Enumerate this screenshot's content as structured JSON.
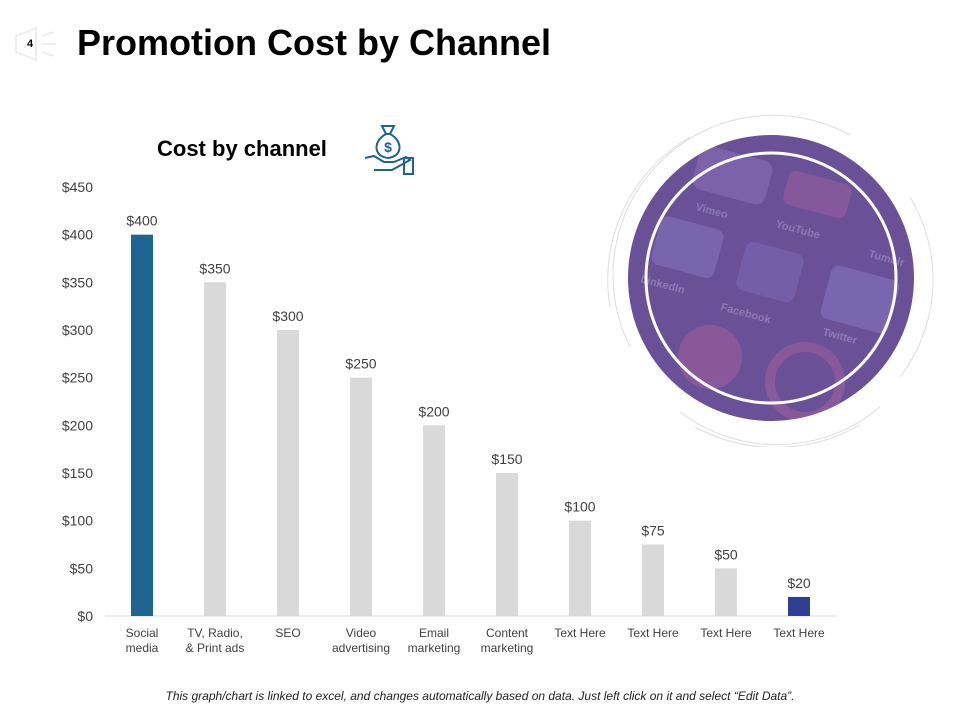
{
  "page_number": "4",
  "title": "Promotion Cost by Channel",
  "footer": "This graph/chart is linked to excel, and changes automatically based on data. Just left click on it and select “Edit Data”.",
  "colors": {
    "highlight_first": "#1f6391",
    "highlight_last": "#2e3f94",
    "bar": "#d9d9d9",
    "circle": "#6a5197"
  },
  "photo_labels": [
    "Vimeo",
    "YouTube",
    "Tumblr",
    "LinkedIn",
    "Facebook",
    "Twitter"
  ],
  "chart_data": {
    "type": "bar",
    "title": "Cost by channel",
    "categories": [
      [
        "Social",
        "media"
      ],
      [
        "TV, Radio,",
        "& Print ads"
      ],
      [
        "SEO"
      ],
      [
        "Video",
        "advertising"
      ],
      [
        "Email",
        "marketing"
      ],
      [
        "Content",
        "marketing"
      ],
      [
        "Text Here"
      ],
      [
        "Text Here"
      ],
      [
        "Text Here"
      ],
      [
        "Text Here"
      ]
    ],
    "values": [
      400,
      350,
      300,
      250,
      200,
      150,
      100,
      75,
      50,
      20
    ],
    "data_labels": [
      "$400",
      "$350",
      "$300",
      "$250",
      "$200",
      "$150",
      "$100",
      "$75",
      "$50",
      "$20"
    ],
    "yticks": [
      "$0",
      "$50",
      "$100",
      "$150",
      "$200",
      "$250",
      "$300",
      "$350",
      "$400",
      "$450"
    ],
    "ylim": [
      0,
      450
    ],
    "xlabel": "",
    "ylabel": "",
    "grid": false
  }
}
